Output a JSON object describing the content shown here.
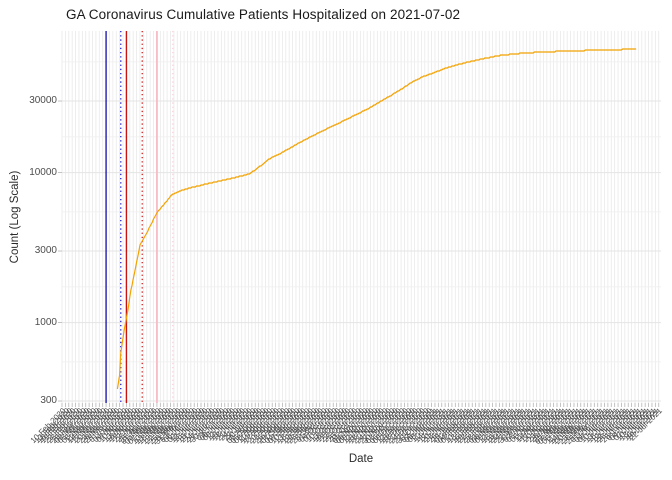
{
  "chart_data": {
    "type": "line",
    "title": "GA Coronavirus Cumulative Patients Hospitalized on 2021-07-02",
    "xlabel": "Date",
    "ylabel": "Count (Log Scale)",
    "y_axis": {
      "scale": "log10",
      "ticks": [
        300,
        1000,
        3000,
        10000,
        30000
      ],
      "minor_gridlines": true,
      "ylim": [
        291,
        88000
      ]
    },
    "x_axis": {
      "start": "2020-02-10",
      "end": "2021-07-24",
      "tick_every_days": 3,
      "tick_label_format": "DD-MMM-YYYY",
      "first_tick_label": "10-Feb-2020",
      "tick_label_angle_deg": 45
    },
    "grid": "both",
    "legend": "none",
    "series": [
      {
        "name": "cumulative-hospitalized",
        "color": "#F2A202",
        "interpolation": "log-linear-daily-steps",
        "points": [
          [
            "2020-03-30",
            360
          ],
          [
            "2020-04-01",
            450
          ],
          [
            "2020-04-02",
            630
          ],
          [
            "2020-04-05",
            890
          ],
          [
            "2020-04-08",
            1180
          ],
          [
            "2020-04-11",
            1650
          ],
          [
            "2020-04-14",
            2100
          ],
          [
            "2020-04-19",
            3300
          ],
          [
            "2020-04-23",
            3700
          ],
          [
            "2020-04-28",
            4400
          ],
          [
            "2020-05-04",
            5400
          ],
          [
            "2020-05-10",
            6100
          ],
          [
            "2020-05-17",
            7100
          ],
          [
            "2020-05-26",
            7600
          ],
          [
            "2020-06-02",
            7900
          ],
          [
            "2020-06-20",
            8500
          ],
          [
            "2020-07-08",
            9100
          ],
          [
            "2020-07-25",
            9800
          ],
          [
            "2020-08-03",
            11000
          ],
          [
            "2020-08-12",
            12400
          ],
          [
            "2020-08-21",
            13400
          ],
          [
            "2020-08-28",
            14300
          ],
          [
            "2020-09-07",
            15800
          ],
          [
            "2020-09-17",
            17300
          ],
          [
            "2020-09-27",
            18900
          ],
          [
            "2020-10-07",
            20500
          ],
          [
            "2020-10-17",
            22300
          ],
          [
            "2020-10-27",
            24300
          ],
          [
            "2020-11-07",
            26700
          ],
          [
            "2020-11-16",
            29300
          ],
          [
            "2020-11-26",
            32300
          ],
          [
            "2020-12-07",
            36300
          ],
          [
            "2020-12-16",
            40200
          ],
          [
            "2020-12-26",
            43800
          ],
          [
            "2021-01-06",
            46900
          ],
          [
            "2021-01-15",
            49900
          ],
          [
            "2021-01-25",
            52400
          ],
          [
            "2021-02-05",
            54900
          ],
          [
            "2021-02-14",
            56900
          ],
          [
            "2021-02-24",
            58900
          ],
          [
            "2021-03-06",
            60700
          ],
          [
            "2021-03-17",
            61900
          ],
          [
            "2021-03-26",
            62700
          ],
          [
            "2021-04-05",
            63300
          ],
          [
            "2021-04-16",
            63900
          ],
          [
            "2021-04-25",
            64300
          ],
          [
            "2021-05-05",
            64700
          ],
          [
            "2021-05-16",
            65100
          ],
          [
            "2021-05-25",
            65400
          ],
          [
            "2021-06-04",
            65700
          ],
          [
            "2021-06-15",
            66000
          ],
          [
            "2021-06-24",
            66300
          ],
          [
            "2021-07-02",
            66600
          ]
        ]
      }
    ],
    "event_lines": [
      {
        "date": "2020-03-20",
        "color": "#2020B2",
        "style": "solid",
        "width": 1.4
      },
      {
        "date": "2020-04-02",
        "color": "#2A2AC8",
        "style": "dotted",
        "width": 1.4
      },
      {
        "date": "2020-04-07",
        "color": "#CC1111",
        "style": "solid",
        "width": 1.4
      },
      {
        "date": "2020-04-21",
        "color": "#D42B2B",
        "style": "dotted",
        "width": 1.4
      },
      {
        "date": "2020-05-04",
        "color": "#F7BCC6",
        "style": "solid",
        "width": 1.8
      },
      {
        "date": "2020-05-18",
        "color": "#FAD7DD",
        "style": "dotted",
        "width": 1.4
      }
    ],
    "style": {
      "line_color": "#F2A202",
      "grid_major": "#E4E4E4",
      "grid_minor": "#F0F0F0",
      "grid_vertical": "#E9E9E9",
      "tick_color": "#B5B5B5",
      "axis_text_color": "#4D4D4D",
      "title_color": "#1A1A1A",
      "background": "#FFFFFF"
    }
  }
}
